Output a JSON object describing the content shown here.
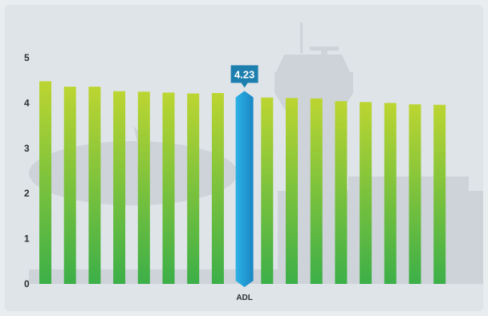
{
  "chart_data": {
    "type": "bar",
    "yticks": [
      0,
      1,
      2,
      3,
      4,
      5
    ],
    "ylim": [
      0,
      5.5
    ],
    "categories": [
      "",
      "",
      "",
      "",
      "",
      "",
      "",
      "",
      "ADL",
      "",
      "",
      "",
      "",
      "",
      "",
      "",
      ""
    ],
    "values": [
      4.48,
      4.36,
      4.36,
      4.26,
      4.25,
      4.23,
      4.21,
      4.22,
      4.23,
      4.12,
      4.11,
      4.1,
      4.04,
      4.02,
      4.0,
      3.97,
      3.96
    ],
    "highlight_index": 8,
    "highlight_label": "4.23",
    "colors": {
      "bar_top": "#bcd531",
      "bar_bottom": "#3caf48",
      "highlight_top": "#2bb2e6",
      "highlight_bottom": "#1a86c4",
      "callout": "#1d7fae"
    }
  }
}
